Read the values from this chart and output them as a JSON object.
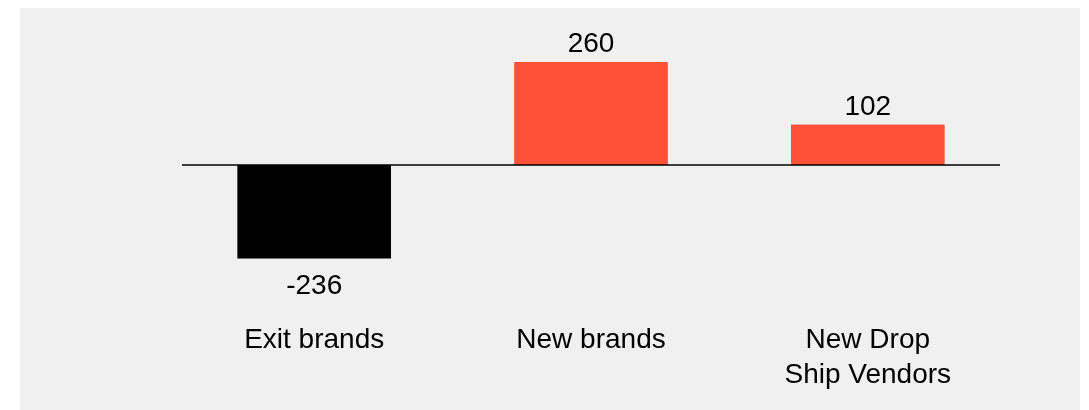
{
  "chart_data": {
    "type": "bar",
    "categories": [
      "Exit brands",
      "New brands",
      "New Drop Ship Vendors"
    ],
    "values": [
      -236,
      260,
      102
    ],
    "colors": [
      "#000000",
      "#ff5038",
      "#ff5038"
    ],
    "data_labels": true
  }
}
